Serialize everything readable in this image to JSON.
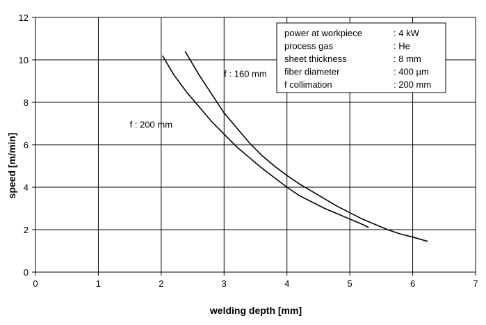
{
  "chart_data": {
    "type": "line",
    "xlabel": "welding depth [mm]",
    "ylabel": "speed [m/min]",
    "xlim": [
      0,
      7
    ],
    "ylim": [
      0,
      12
    ],
    "xticks": [
      "0",
      "1",
      "2",
      "3",
      "4",
      "5",
      "6",
      "7"
    ],
    "yticks": [
      "0",
      "2",
      "4",
      "6",
      "8",
      "10",
      "12"
    ],
    "grid": true,
    "series": [
      {
        "name": "f : 160 mm",
        "color": "#000000",
        "x": [
          2.38,
          2.6,
          2.8,
          3.0,
          3.2,
          3.4,
          3.6,
          3.8,
          4.0,
          4.2,
          4.4,
          4.6,
          4.8,
          5.0,
          5.2,
          5.4,
          5.6,
          5.8,
          6.0,
          6.24
        ],
        "y": [
          10.4,
          9.3,
          8.4,
          7.5,
          6.8,
          6.1,
          5.5,
          5.0,
          4.55,
          4.15,
          3.8,
          3.45,
          3.1,
          2.8,
          2.5,
          2.25,
          2.0,
          1.8,
          1.65,
          1.45
        ]
      },
      {
        "name": "f : 200 mm",
        "color": "#000000",
        "x": [
          2.02,
          2.2,
          2.4,
          2.6,
          2.8,
          3.0,
          3.2,
          3.4,
          3.6,
          3.8,
          4.0,
          4.2,
          4.4,
          4.6,
          4.8,
          5.0,
          5.2,
          5.3
        ],
        "y": [
          10.2,
          9.3,
          8.5,
          7.8,
          7.1,
          6.5,
          5.9,
          5.4,
          4.9,
          4.45,
          4.0,
          3.6,
          3.3,
          3.0,
          2.75,
          2.5,
          2.25,
          2.1
        ]
      }
    ],
    "annotations": [
      {
        "text": "f  :  160 mm",
        "x": 3.0,
        "y": 9.2
      },
      {
        "text": "f  :  200 mm",
        "x": 1.5,
        "y": 6.8
      }
    ],
    "infobox": {
      "rows": [
        {
          "label": "power at workpiece",
          "value": ": 4 kW"
        },
        {
          "label": "process gas",
          "value": ": He"
        },
        {
          "label": "sheet thickness",
          "value": ": 8 mm"
        },
        {
          "label": "fiber diameter",
          "value": ": 400 µm"
        },
        {
          "label": "f collimation",
          "value": ": 200 mm"
        }
      ]
    }
  }
}
